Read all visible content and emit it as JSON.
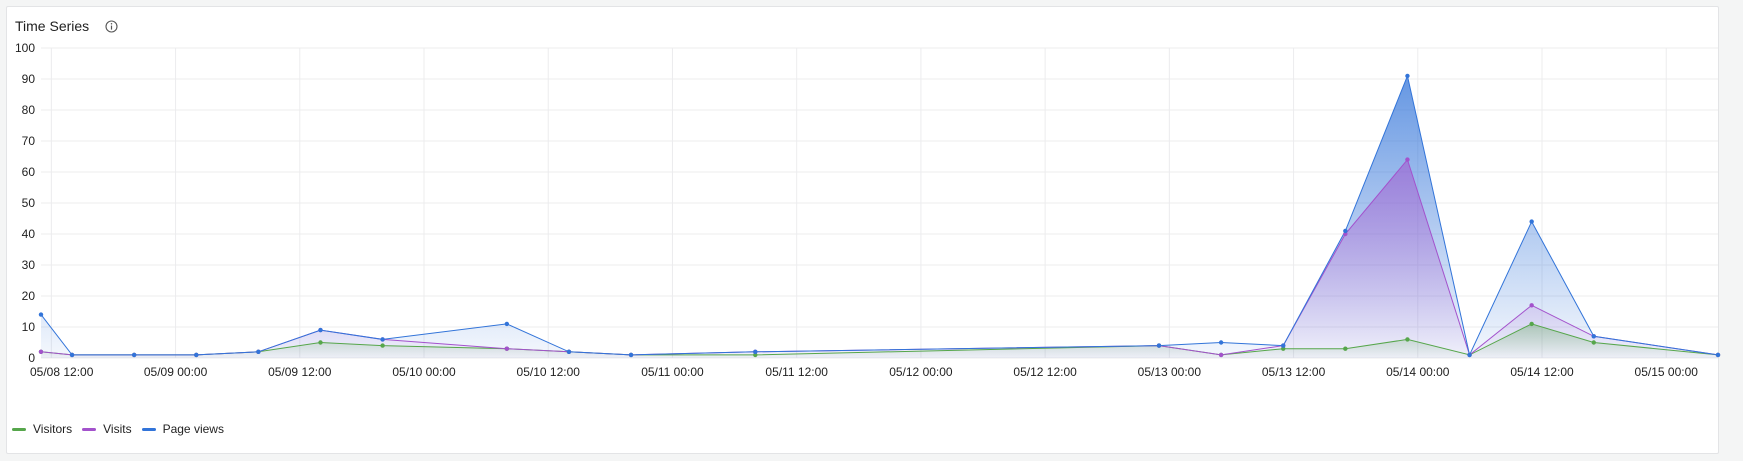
{
  "panel": {
    "title": "Time Series",
    "info_icon": "info-circle-icon"
  },
  "chart_data": {
    "type": "area",
    "title": "Time Series",
    "x_labels": [
      "05/08 12:00",
      "05/09 00:00",
      "05/09 12:00",
      "05/10 00:00",
      "05/10 12:00",
      "05/11 00:00",
      "05/11 12:00",
      "05/12 00:00",
      "05/12 12:00",
      "05/13 00:00",
      "05/13 12:00",
      "05/14 00:00",
      "05/14 12:00",
      "05/15 00:00"
    ],
    "x_range": [
      "05/08 11:00",
      "05/15 05:00"
    ],
    "y_ticks": [
      0,
      10,
      20,
      30,
      40,
      50,
      60,
      70,
      80,
      90,
      100
    ],
    "ylim": [
      0,
      100
    ],
    "grid": true,
    "legend_position": "bottom-left",
    "series": [
      {
        "name": "Visitors",
        "color": "#56a64b",
        "points": [
          [
            "05/08 11:00",
            2
          ],
          [
            "05/08 14:00",
            1
          ],
          [
            "05/08 20:00",
            1
          ],
          [
            "05/09 02:00",
            1
          ],
          [
            "05/09 08:00",
            2
          ],
          [
            "05/09 14:00",
            5
          ],
          [
            "05/09 20:00",
            4
          ],
          [
            "05/10 08:00",
            3
          ],
          [
            "05/10 14:00",
            2
          ],
          [
            "05/10 20:00",
            1
          ],
          [
            "05/11 08:00",
            1
          ],
          [
            "05/12 23:00",
            4
          ],
          [
            "05/13 05:00",
            1
          ],
          [
            "05/13 11:00",
            3
          ],
          [
            "05/13 17:00",
            3
          ],
          [
            "05/13 23:00",
            6
          ],
          [
            "05/14 05:00",
            1
          ],
          [
            "05/14 11:00",
            11
          ],
          [
            "05/14 17:00",
            5
          ],
          [
            "05/15 05:00",
            1
          ]
        ]
      },
      {
        "name": "Visits",
        "color": "#a352cc",
        "points": [
          [
            "05/08 11:00",
            2
          ],
          [
            "05/08 14:00",
            1
          ],
          [
            "05/08 20:00",
            1
          ],
          [
            "05/09 02:00",
            1
          ],
          [
            "05/09 08:00",
            2
          ],
          [
            "05/09 14:00",
            9
          ],
          [
            "05/09 20:00",
            6
          ],
          [
            "05/10 08:00",
            3
          ],
          [
            "05/10 14:00",
            2
          ],
          [
            "05/10 20:00",
            1
          ],
          [
            "05/11 08:00",
            2
          ],
          [
            "05/12 23:00",
            4
          ],
          [
            "05/13 05:00",
            1
          ],
          [
            "05/13 11:00",
            4
          ],
          [
            "05/13 17:00",
            40
          ],
          [
            "05/13 23:00",
            64
          ],
          [
            "05/14 05:00",
            1
          ],
          [
            "05/14 11:00",
            17
          ],
          [
            "05/14 17:00",
            7
          ],
          [
            "05/15 05:00",
            1
          ]
        ]
      },
      {
        "name": "Page views",
        "color": "#3274d9",
        "points": [
          [
            "05/08 11:00",
            14
          ],
          [
            "05/08 14:00",
            1
          ],
          [
            "05/08 20:00",
            1
          ],
          [
            "05/09 02:00",
            1
          ],
          [
            "05/09 08:00",
            2
          ],
          [
            "05/09 14:00",
            9
          ],
          [
            "05/09 20:00",
            6
          ],
          [
            "05/10 08:00",
            11
          ],
          [
            "05/10 14:00",
            2
          ],
          [
            "05/10 20:00",
            1
          ],
          [
            "05/11 08:00",
            2
          ],
          [
            "05/12 23:00",
            4
          ],
          [
            "05/13 05:00",
            5
          ],
          [
            "05/13 11:00",
            4
          ],
          [
            "05/13 17:00",
            41
          ],
          [
            "05/13 23:00",
            91
          ],
          [
            "05/14 05:00",
            1
          ],
          [
            "05/14 11:00",
            44
          ],
          [
            "05/14 17:00",
            7
          ],
          [
            "05/15 05:00",
            1
          ]
        ]
      }
    ]
  }
}
